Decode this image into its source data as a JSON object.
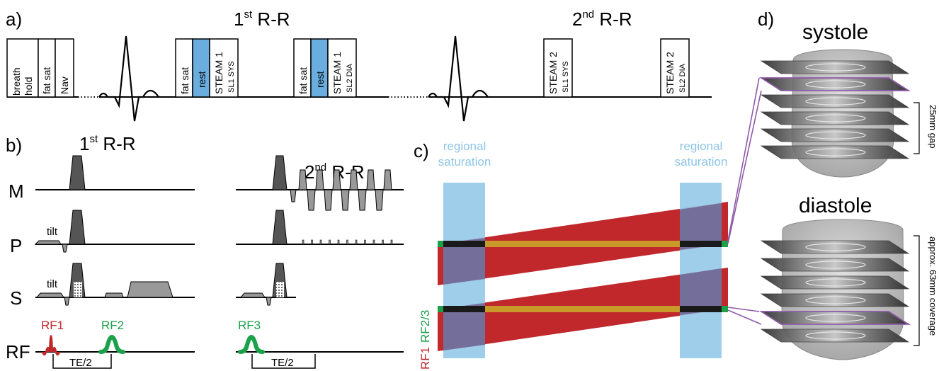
{
  "panel_labels": {
    "a": "a)",
    "b": "b)",
    "c": "c)",
    "d": "d)"
  },
  "panel_a": {
    "rr1_base": "1",
    "rr1_sup": "st",
    "rr1_rest": " R-R",
    "rr2_base": "2",
    "rr2_sup": "nd",
    "rr2_rest": " R-R",
    "breath_line1": "breath",
    "breath_line2": "hold",
    "fat_sat": "fat sat",
    "nav": "Nav",
    "rest": "rest",
    "steam1": "STEAM 1",
    "sl1_sys": "SL1 SYS",
    "sl2_dia": "SL2 DIA",
    "steam2": "STEAM 2"
  },
  "panel_b": {
    "rr1_base": "1",
    "rr1_sup": "st",
    "rr1_rest": " R-R",
    "rr2_base": "2",
    "rr2_sup": "nd",
    "rr2_rest": " R-R",
    "row_m": "M",
    "row_p": "P",
    "row_s": "S",
    "row_rf": "RF",
    "tilt": "tilt",
    "rf1": "RF1",
    "rf2": "RF2",
    "rf3": "RF3",
    "te_half": "TE/2"
  },
  "panel_c": {
    "regional_line1": "regional",
    "regional_line2": "saturation",
    "rf1": "RF1",
    "rf23": "RF2/3"
  },
  "panel_d": {
    "systole": "systole",
    "diastole": "diastole",
    "gap": "25mm gap",
    "coverage": "approx. 63mm coverage"
  },
  "colors": {
    "blue_box": "#6aaee0",
    "saturation": "#8dc5e6",
    "rf1_red": "#c0282c",
    "rf2_green": "#1aa14a",
    "gold": "#c99a2a",
    "purple": "#8e5aa8",
    "gradient_dark": "#555555",
    "gradient_light": "#9a9a9a"
  }
}
